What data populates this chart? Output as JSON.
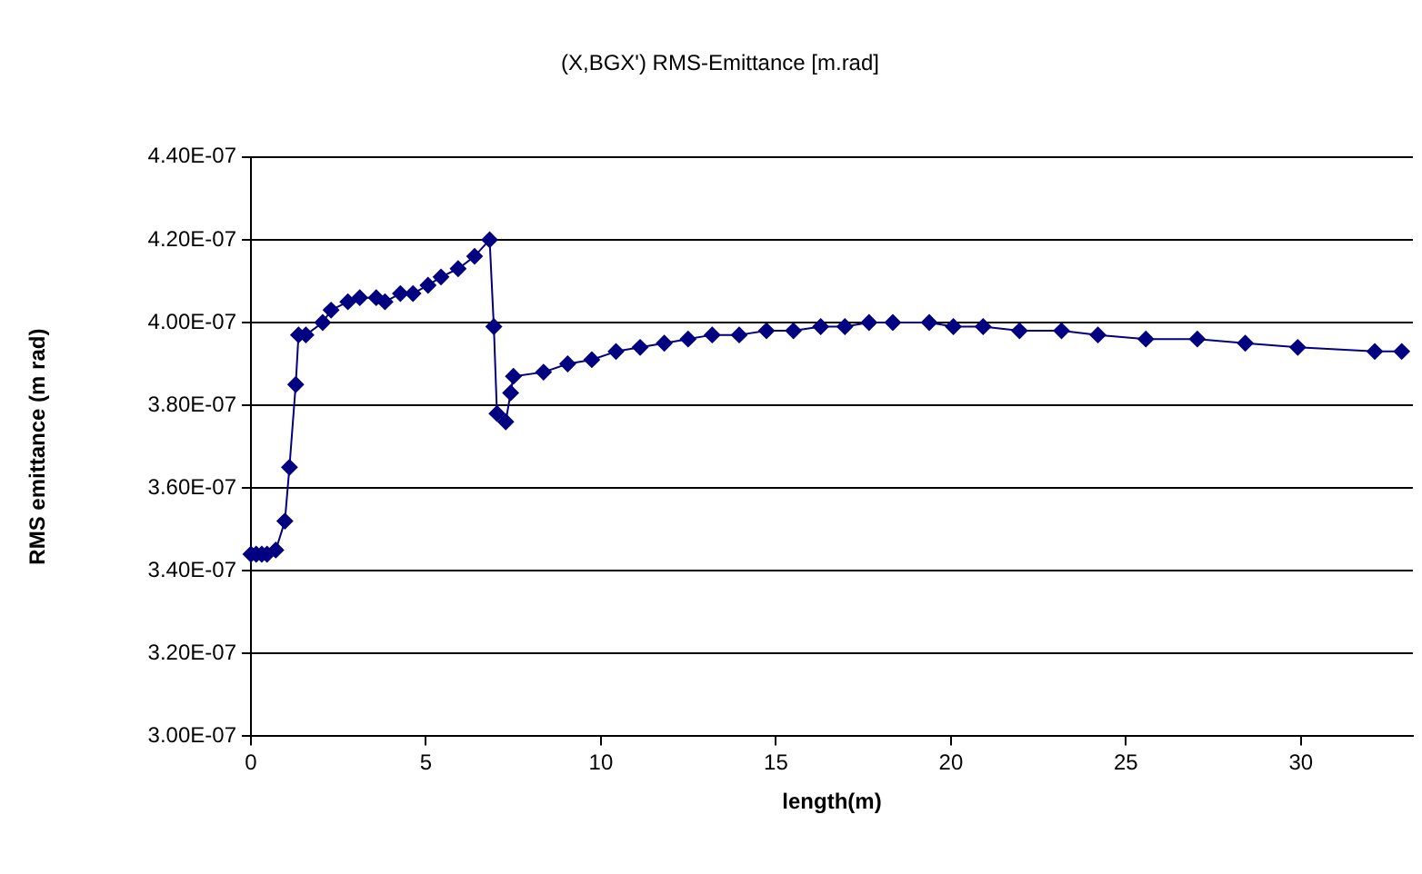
{
  "chart_data": {
    "type": "line",
    "title": "(X,BGX') RMS-Emittance [m.rad]",
    "xlabel": "length(m)",
    "ylabel": "RMS emittance (m rad)",
    "x": [
      0,
      0.15,
      0.31,
      0.46,
      0.71,
      0.97,
      1.1,
      1.28,
      1.36,
      1.57,
      2.05,
      2.29,
      2.77,
      3.11,
      3.58,
      3.83,
      4.27,
      4.63,
      5.06,
      5.43,
      5.92,
      6.39,
      6.82,
      6.94,
      7.03,
      7.28,
      7.42,
      7.5,
      8.36,
      9.05,
      9.74,
      10.43,
      11.12,
      11.81,
      12.49,
      13.18,
      13.95,
      14.73,
      15.5,
      16.28,
      16.97,
      17.66,
      18.34,
      19.38,
      20.07,
      20.92,
      21.96,
      23.16,
      24.2,
      25.57,
      27.04,
      28.41,
      29.91,
      32.11,
      32.88
    ],
    "series": [
      {
        "color": "#000080",
        "values": [
          3.44e-07,
          3.44e-07,
          3.44e-07,
          3.44e-07,
          3.45e-07,
          3.52e-07,
          3.65e-07,
          3.85e-07,
          3.97e-07,
          3.97e-07,
          4e-07,
          4.03e-07,
          4.05e-07,
          4.06e-07,
          4.06e-07,
          4.05e-07,
          4.07e-07,
          4.07e-07,
          4.09e-07,
          4.11e-07,
          4.13e-07,
          4.16e-07,
          4.2e-07,
          3.99e-07,
          3.78e-07,
          3.76e-07,
          3.83e-07,
          3.87e-07,
          3.88e-07,
          3.9e-07,
          3.91e-07,
          3.93e-07,
          3.94e-07,
          3.95e-07,
          3.96e-07,
          3.97e-07,
          3.97e-07,
          3.98e-07,
          3.98e-07,
          3.99e-07,
          3.99e-07,
          4e-07,
          4e-07,
          4e-07,
          3.99e-07,
          3.99e-07,
          3.98e-07,
          3.98e-07,
          3.97e-07,
          3.96e-07,
          3.96e-07,
          3.95e-07,
          3.94e-07,
          3.93e-07,
          3.93e-07
        ]
      }
    ],
    "xlim": [
      0,
      33.2
    ],
    "xticks": [
      0,
      5,
      10,
      15,
      20,
      25,
      30
    ],
    "ylim": [
      3e-07,
      4.4e-07
    ],
    "yticks": [
      {
        "value": 3e-07,
        "label": "3.00E-07"
      },
      {
        "value": 3.2e-07,
        "label": "3.20E-07"
      },
      {
        "value": 3.4e-07,
        "label": "3.40E-07"
      },
      {
        "value": 3.6e-07,
        "label": "3.60E-07"
      },
      {
        "value": 3.8e-07,
        "label": "3.80E-07"
      },
      {
        "value": 4e-07,
        "label": "4.00E-07"
      },
      {
        "value": 4.2e-07,
        "label": "4.20E-07"
      },
      {
        "value": 4.4e-07,
        "label": "4.40E-07"
      }
    ],
    "grid": "y",
    "marker": "diamond",
    "line_style": "solid",
    "legend": false
  }
}
